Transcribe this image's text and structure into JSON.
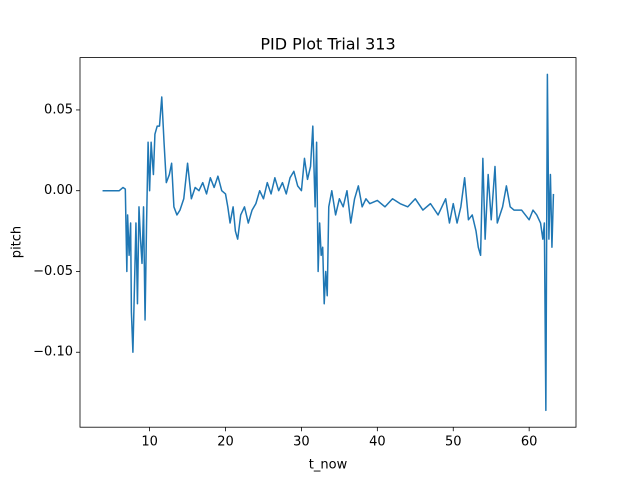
{
  "chart_data": {
    "type": "line",
    "title": "PID Plot Trial 313",
    "xlabel": "t_now",
    "ylabel": "pitch",
    "x": [
      3.8,
      5.0,
      6.0,
      6.5,
      6.8,
      7.0,
      7.1,
      7.3,
      7.5,
      7.6,
      7.8,
      8.0,
      8.2,
      8.4,
      8.6,
      8.8,
      9.0,
      9.2,
      9.4,
      9.6,
      9.8,
      10.0,
      10.2,
      10.5,
      10.7,
      11.0,
      11.3,
      11.6,
      11.9,
      12.2,
      12.6,
      12.9,
      13.2,
      13.6,
      14.0,
      14.5,
      15.0,
      15.5,
      16.0,
      16.5,
      17.0,
      17.5,
      18.0,
      18.5,
      19.0,
      19.5,
      20.0,
      20.3,
      20.6,
      21.0,
      21.3,
      21.6,
      22.0,
      22.5,
      23.0,
      23.5,
      24.0,
      24.5,
      25.0,
      25.5,
      26.0,
      26.5,
      27.0,
      27.5,
      28.0,
      28.5,
      29.0,
      29.5,
      30.0,
      30.4,
      30.8,
      31.2,
      31.5,
      31.8,
      32.0,
      32.2,
      32.4,
      32.6,
      32.8,
      33.0,
      33.2,
      33.4,
      33.6,
      34.0,
      34.5,
      35.0,
      35.5,
      36.0,
      36.5,
      37.0,
      37.5,
      38.0,
      38.5,
      39.0,
      40.0,
      41.0,
      42.0,
      43.0,
      44.0,
      45.0,
      46.0,
      47.0,
      48.0,
      49.0,
      49.5,
      50.0,
      50.5,
      51.0,
      51.5,
      52.0,
      52.5,
      53.0,
      53.3,
      53.6,
      53.9,
      54.2,
      54.6,
      55.0,
      55.5,
      55.8,
      56.5,
      57.0,
      57.5,
      58.0,
      59.0,
      60.0,
      60.5,
      61.0,
      61.5,
      61.8,
      62.0,
      62.2,
      62.4,
      62.6,
      62.8,
      63.0,
      63.2
    ],
    "series": [
      {
        "color": "#1f77b4",
        "values": [
          0.0,
          0.0,
          0.0,
          0.002,
          0.001,
          -0.05,
          -0.015,
          -0.04,
          -0.02,
          -0.075,
          -0.1,
          -0.06,
          -0.02,
          -0.07,
          -0.01,
          -0.03,
          -0.045,
          -0.01,
          -0.08,
          -0.02,
          0.03,
          0.0,
          0.03,
          0.01,
          0.035,
          0.04,
          0.04,
          0.058,
          0.03,
          0.005,
          0.01,
          0.017,
          -0.01,
          -0.015,
          -0.012,
          -0.005,
          0.017,
          -0.005,
          0.002,
          0.0,
          0.005,
          -0.002,
          0.008,
          0.002,
          0.009,
          0.0,
          -0.002,
          -0.01,
          -0.02,
          -0.01,
          -0.025,
          -0.03,
          -0.015,
          -0.01,
          -0.02,
          -0.012,
          -0.008,
          0.0,
          -0.005,
          0.005,
          -0.002,
          0.008,
          0.0,
          0.005,
          -0.002,
          0.008,
          0.012,
          0.003,
          0.0,
          0.02,
          0.007,
          0.015,
          0.04,
          -0.01,
          0.03,
          -0.05,
          -0.02,
          -0.04,
          -0.035,
          -0.07,
          -0.05,
          -0.065,
          -0.01,
          0.0,
          -0.015,
          -0.005,
          -0.01,
          0.0,
          -0.02,
          -0.005,
          0.003,
          -0.01,
          -0.005,
          -0.008,
          -0.006,
          -0.01,
          -0.005,
          -0.008,
          -0.01,
          -0.005,
          -0.012,
          -0.008,
          -0.015,
          -0.005,
          -0.02,
          -0.008,
          -0.02,
          -0.01,
          0.008,
          -0.018,
          -0.015,
          -0.025,
          -0.035,
          -0.04,
          0.02,
          -0.03,
          0.01,
          -0.018,
          0.015,
          -0.02,
          -0.01,
          0.003,
          -0.01,
          -0.012,
          -0.012,
          -0.018,
          -0.012,
          -0.015,
          -0.02,
          -0.03,
          -0.02,
          -0.136,
          0.072,
          -0.03,
          0.01,
          -0.035,
          -0.002
        ]
      }
    ],
    "xlim": [
      0.83,
      66.17
    ],
    "ylim": [
      -0.1464,
      0.0824
    ],
    "xticks": [
      10,
      20,
      30,
      40,
      50,
      60
    ],
    "yticks": [
      {
        "value": -0.1,
        "label": "−0.10"
      },
      {
        "value": -0.05,
        "label": "−0.05"
      },
      {
        "value": 0,
        "label": "0.00"
      },
      0.05
    ],
    "grid": false
  }
}
